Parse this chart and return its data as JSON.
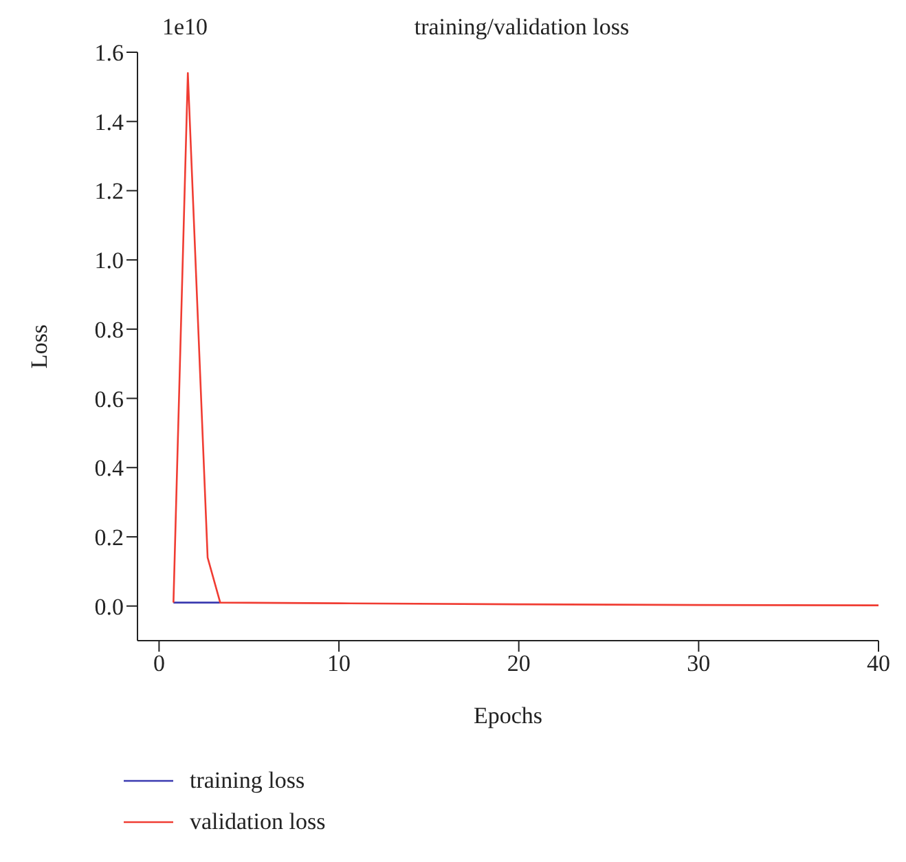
{
  "chart_data": {
    "type": "line",
    "title": "training/validation loss",
    "xlabel": "Epochs",
    "ylabel": "Loss",
    "annotations": [
      "1e10"
    ],
    "xlim": [
      -1.2,
      40
    ],
    "xticks": [
      0,
      10,
      20,
      30,
      40
    ],
    "ylim": [
      -0.1,
      1.6
    ],
    "yticks": [
      {
        "value": 0,
        "label": "0.0"
      },
      0.2,
      0.4,
      0.6,
      0.8,
      {
        "value": 1,
        "label": "1.0"
      },
      1.2,
      1.4,
      1.6
    ],
    "grid": false,
    "legend": "bottom left",
    "marker": "none",
    "line_style": "solid",
    "series": [
      {
        "name": "training loss",
        "color": "#3a3ab0",
        "x": [
          0.8,
          3.4
        ],
        "values": [
          0.01,
          0.01
        ]
      },
      {
        "name": "validation loss",
        "color": "#f03c32",
        "x": [
          0.8,
          1.6,
          2.7,
          3.4,
          10,
          20,
          30,
          40
        ],
        "values": [
          0.01,
          1.54,
          0.14,
          0.01,
          0.008,
          0.005,
          0.003,
          0.002
        ]
      }
    ]
  }
}
